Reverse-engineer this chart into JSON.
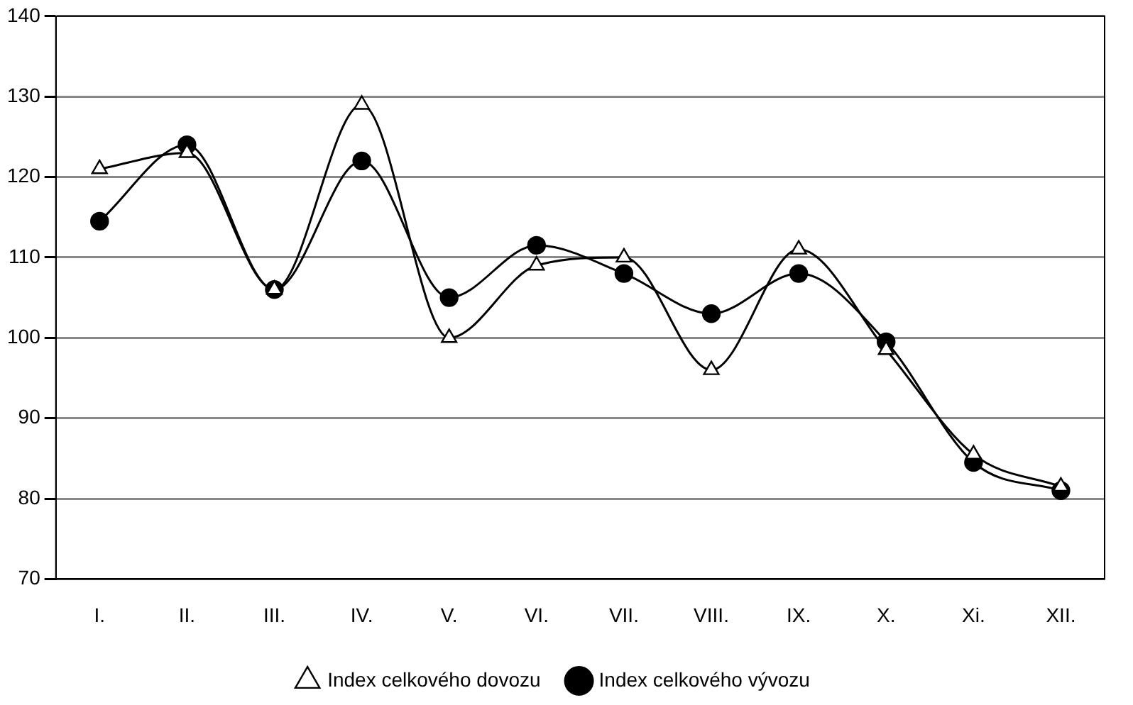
{
  "chart_data": {
    "type": "line",
    "categories": [
      "I.",
      "II.",
      "III.",
      "IV.",
      "V.",
      "VI.",
      "VII.",
      "VIII.",
      "IX.",
      "X.",
      "Xi.",
      "XII."
    ],
    "series": [
      {
        "name": "Index celkového dovozu",
        "color": "#000000",
        "marker": "triangle",
        "values": [
          121,
          123,
          106,
          129,
          100,
          109,
          110,
          96,
          111,
          98.5,
          85.5,
          81.5
        ]
      },
      {
        "name": "Index celkového vývozu",
        "color": "#000000",
        "marker": "circle",
        "values": [
          114.5,
          124,
          106,
          122,
          105,
          111.5,
          108,
          103,
          108,
          99.5,
          84.5,
          81
        ]
      }
    ],
    "ylim": [
      70,
      140
    ],
    "yticks": [
      70,
      80,
      90,
      100,
      110,
      120,
      130,
      140
    ],
    "grid": "y",
    "legend": "bottom",
    "line_style": "solid"
  }
}
